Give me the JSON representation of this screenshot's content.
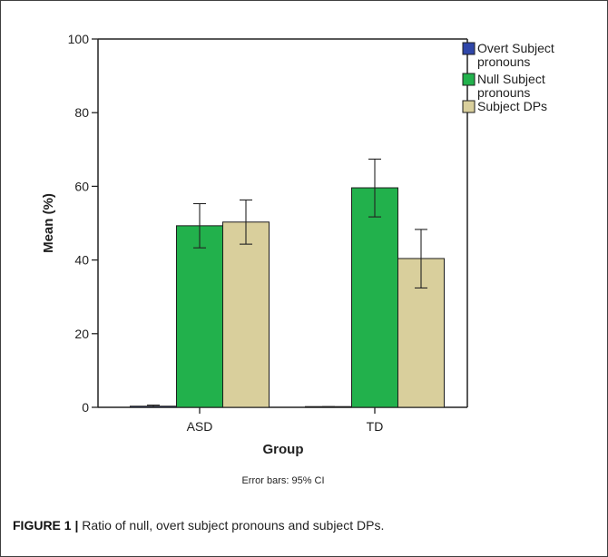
{
  "chart_data": {
    "type": "bar",
    "xlabel": "Group",
    "ylabel": "Mean (%)",
    "ylim": [
      0,
      100
    ],
    "yticks": [
      0,
      20,
      40,
      60,
      80,
      100
    ],
    "categories": [
      "ASD",
      "TD"
    ],
    "series": [
      {
        "name": "Overt Subject pronouns",
        "color": "#2f46a8",
        "values": [
          0.3,
          0.1
        ],
        "ci_low": [
          0.0,
          0.0
        ],
        "ci_high": [
          0.6,
          0.2
        ]
      },
      {
        "name": "Null Subject pronouns",
        "color": "#22b14c",
        "values": [
          49.3,
          59.6
        ],
        "ci_low": [
          43.3,
          51.7
        ],
        "ci_high": [
          55.3,
          67.4
        ]
      },
      {
        "name": "Subject DPs",
        "color": "#d9cf9c",
        "values": [
          50.3,
          40.4
        ],
        "ci_low": [
          44.3,
          32.4
        ],
        "ci_high": [
          56.3,
          48.3
        ]
      }
    ],
    "legend_position": "right",
    "legend_labels": [
      [
        "Overt Subject",
        "pronouns"
      ],
      [
        "Null Subject",
        "pronouns"
      ],
      [
        "Subject DPs"
      ]
    ],
    "error_bar_note": "Error bars: 95% CI"
  },
  "caption": {
    "label": "FIGURE 1 |",
    "text": " Ratio of null, overt subject pronouns and subject DPs."
  }
}
